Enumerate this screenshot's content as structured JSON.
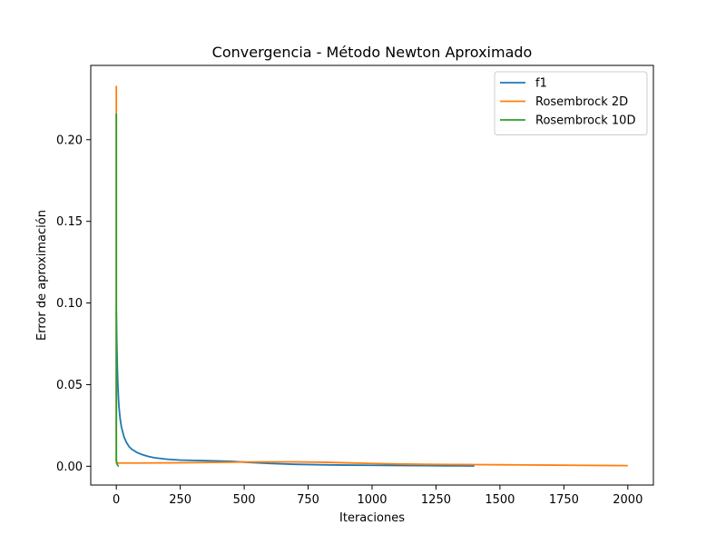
{
  "chart_data": {
    "type": "line",
    "title": "Convergencia - Método Newton Aproximado",
    "xlabel": "Iteraciones",
    "ylabel": "Error de aproximación",
    "xlim": [
      -100,
      2100
    ],
    "ylim": [
      -0.0115,
      0.2455
    ],
    "xticks": [
      0,
      250,
      500,
      750,
      1000,
      1250,
      1500,
      1750,
      2000
    ],
    "xtick_labels": [
      "0",
      "250",
      "500",
      "750",
      "1000",
      "1250",
      "1500",
      "1750",
      "2000"
    ],
    "yticks": [
      0.0,
      0.05,
      0.1,
      0.15,
      0.2
    ],
    "ytick_labels": [
      "0.00",
      "0.05",
      "0.10",
      "0.15",
      "0.20"
    ],
    "grid": false,
    "legend_position": "top-right",
    "series": [
      {
        "name": "f1",
        "color": "#1f77b4",
        "points": [
          [
            0,
            0.095
          ],
          [
            2,
            0.075
          ],
          [
            4,
            0.06
          ],
          [
            6,
            0.05
          ],
          [
            8,
            0.043
          ],
          [
            10,
            0.037
          ],
          [
            15,
            0.029
          ],
          [
            20,
            0.024
          ],
          [
            30,
            0.018
          ],
          [
            40,
            0.0145
          ],
          [
            50,
            0.012
          ],
          [
            60,
            0.0105
          ],
          [
            80,
            0.0085
          ],
          [
            100,
            0.0072
          ],
          [
            125,
            0.006
          ],
          [
            150,
            0.0052
          ],
          [
            200,
            0.0043
          ],
          [
            250,
            0.0038
          ],
          [
            300,
            0.0036
          ],
          [
            350,
            0.0034
          ],
          [
            400,
            0.0032
          ],
          [
            450,
            0.003
          ],
          [
            500,
            0.0025
          ],
          [
            600,
            0.0017
          ],
          [
            700,
            0.0012
          ],
          [
            800,
            0.0009
          ],
          [
            900,
            0.0007
          ],
          [
            1000,
            0.0006
          ],
          [
            1100,
            0.0005
          ],
          [
            1200,
            0.0004
          ],
          [
            1300,
            0.0003
          ],
          [
            1400,
            0.0002
          ]
        ]
      },
      {
        "name": "Rosembrock 2D",
        "color": "#ff7f0e",
        "points": [
          [
            0,
            0.233
          ],
          [
            0,
            0.002
          ],
          [
            50,
            0.002
          ],
          [
            100,
            0.002
          ],
          [
            200,
            0.0021
          ],
          [
            300,
            0.0022
          ],
          [
            400,
            0.0024
          ],
          [
            500,
            0.0026
          ],
          [
            600,
            0.0027
          ],
          [
            700,
            0.0027
          ],
          [
            800,
            0.0025
          ],
          [
            900,
            0.0021
          ],
          [
            1000,
            0.0017
          ],
          [
            1100,
            0.0014
          ],
          [
            1200,
            0.0012
          ],
          [
            1300,
            0.0011
          ],
          [
            1400,
            0.001
          ],
          [
            1500,
            0.0009
          ],
          [
            1600,
            0.0008
          ],
          [
            1700,
            0.0007
          ],
          [
            1800,
            0.0006
          ],
          [
            1900,
            0.0005
          ],
          [
            2000,
            0.0004
          ]
        ]
      },
      {
        "name": "Rosembrock 10D",
        "color": "#2ca02c",
        "points": [
          [
            0,
            0.216
          ],
          [
            0,
            0.004
          ],
          [
            2,
            0.002
          ],
          [
            4,
            0.001
          ],
          [
            6,
            0.0005
          ],
          [
            8,
            0.0002
          ],
          [
            10,
            0.0001
          ]
        ]
      }
    ]
  }
}
